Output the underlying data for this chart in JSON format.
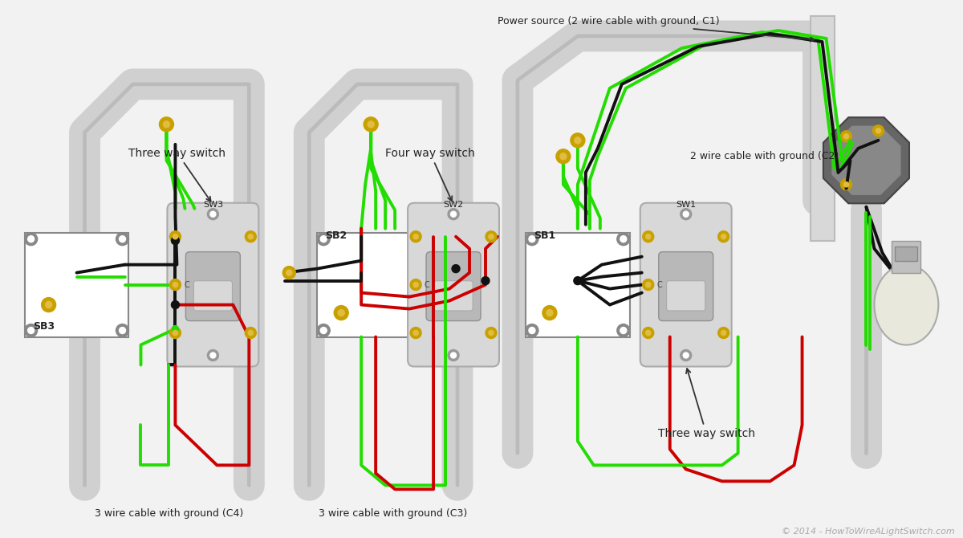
{
  "background_color": "#f2f2f2",
  "copyright": "© 2014 - HowToWireALightSwitch.com",
  "labels": {
    "three_way_sw_left": "Three way switch",
    "four_way_sw": "Four way switch",
    "three_way_sw_right": "Three way switch",
    "power_source": "Power source (2 wire cable with ground, C1)",
    "cable_c2": "2 wire cable with ground (C2)",
    "cable_c3": "3 wire cable with ground (C3)",
    "cable_c4": "3 wire cable with ground (C4)",
    "sb1": "SB1",
    "sb2": "SB2",
    "sb3": "SB3",
    "sw1": "SW1",
    "sw2": "SW2",
    "sw3": "SW3",
    "c_label": "C"
  },
  "colors": {
    "background": "#f2f2f2",
    "box_fill": "#ffffff",
    "box_stroke": "#888888",
    "plate_fill": "#d8d8d8",
    "plate_stroke": "#aaaaaa",
    "wire_green": "#22dd00",
    "wire_black": "#111111",
    "wire_red": "#cc0000",
    "conduit_fill": "#d0d0d0",
    "conduit_stroke": "#bbbbbb",
    "screw_gold": "#c8a000",
    "screw_inner": "#e0bc40",
    "text_dark": "#222222",
    "text_copyright": "#aaaaaa",
    "arrow_color": "#333333",
    "toggle_fill": "#c0c0c0",
    "toggle_stroke": "#909090",
    "corner_circle": "#888888",
    "bulb_fill": "#e8e8dc",
    "oct_fill": "#555555",
    "oct_inner": "#888888"
  },
  "layout": {
    "fig_width": 12.0,
    "fig_height": 6.7,
    "dpi": 100
  }
}
